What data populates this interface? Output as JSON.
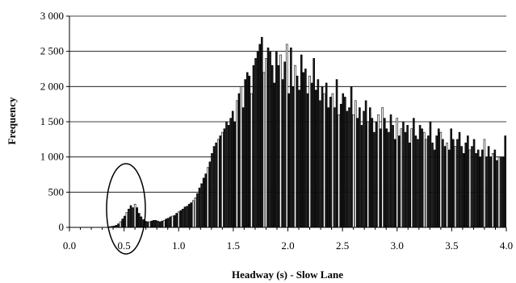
{
  "chart_data": {
    "type": "bar",
    "title": "",
    "xlabel": "Headway (s) - Slow Lane",
    "ylabel": "Frequency",
    "xlim": [
      0.0,
      4.0
    ],
    "ylim": [
      0,
      3000
    ],
    "x_ticks": [
      "0.0",
      "0.5",
      "1.0",
      "1.5",
      "2.0",
      "2.5",
      "3.0",
      "3.5",
      "4.0"
    ],
    "y_ticks": [
      "0",
      "500",
      "1 000",
      "1 500",
      "2 000",
      "2 500",
      "3 000"
    ],
    "grid": "horizontal",
    "bin_width": 0.02,
    "values": [
      0,
      0,
      0,
      0,
      0,
      0,
      0,
      0,
      0,
      0,
      0,
      0,
      0,
      0,
      0,
      0,
      0,
      2,
      5,
      10,
      15,
      20,
      30,
      50,
      80,
      120,
      160,
      210,
      260,
      310,
      280,
      330,
      280,
      200,
      150,
      110,
      90,
      80,
      80,
      90,
      100,
      100,
      90,
      80,
      90,
      100,
      120,
      130,
      150,
      160,
      170,
      200,
      220,
      240,
      260,
      290,
      300,
      330,
      350,
      380,
      420,
      480,
      560,
      620,
      700,
      760,
      850,
      930,
      1050,
      1150,
      1200,
      1250,
      1300,
      1350,
      1400,
      1500,
      1450,
      1550,
      1650,
      1500,
      1800,
      1900,
      2000,
      1700,
      2100,
      2200,
      2150,
      1900,
      2300,
      2400,
      2500,
      2600,
      2700,
      2200,
      2400,
      2550,
      2500,
      2300,
      2050,
      2500,
      2300,
      2450,
      2100,
      2350,
      2600,
      1900,
      2550,
      2000,
      2300,
      2150,
      1950,
      2450,
      2200,
      2250,
      1900,
      2150,
      2050,
      2400,
      1950,
      2100,
      1800,
      2000,
      1900,
      2050,
      1700,
      1850,
      1900,
      1700,
      2100,
      1600,
      1750,
      1900,
      1850,
      1650,
      1700,
      2000,
      1600,
      1800,
      1550,
      1700,
      1450,
      1650,
      1800,
      1500,
      1700,
      1550,
      1350,
      1500,
      1600,
      1400,
      1700,
      1550,
      1400,
      1350,
      1600,
      1450,
      1250,
      1550,
      1300,
      1400,
      1500,
      1350,
      1450,
      1200,
      1400,
      1550,
      1300,
      1250,
      1450,
      1400,
      1350,
      1250,
      1300,
      1500,
      1200,
      1100,
      1300,
      1400,
      1350,
      1250,
      1150,
      1200,
      1100,
      1400,
      1250,
      1150,
      1250,
      1350,
      1150,
      1050,
      1200,
      1300,
      1100,
      1150,
      1250,
      1050,
      1100,
      1000,
      1100,
      1250,
      1000,
      1150,
      1000,
      1050,
      1100,
      950,
      1000,
      1000,
      1000,
      1300
    ],
    "annotation": "ellipse around 0.5 s"
  },
  "colors": {
    "bar_fill": "#1a1a1a",
    "bar_light": "#ffffff",
    "grid": "#000000",
    "axis": "#000000"
  }
}
